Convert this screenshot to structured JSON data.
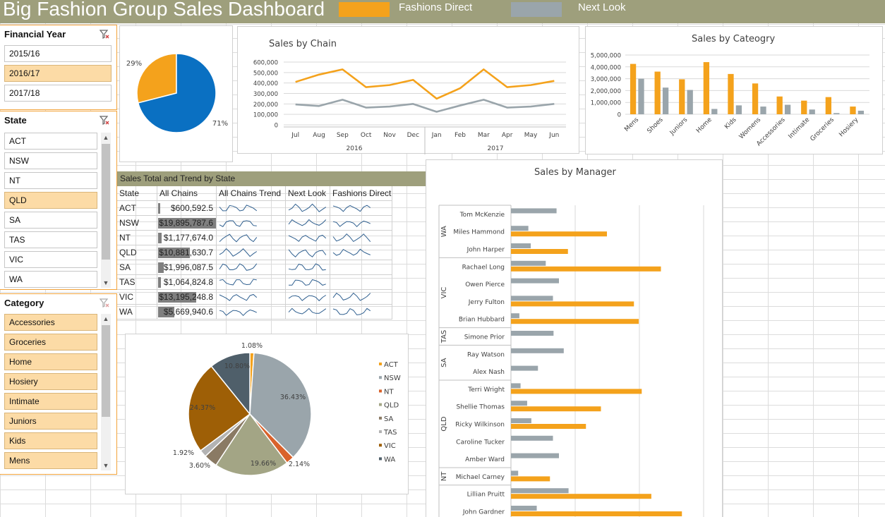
{
  "header": {
    "title": "Big Fashion Group Sales Dashboard",
    "legend": [
      {
        "label": "Fashions Direct",
        "color": "#f4a21c"
      },
      {
        "label": "Next Look",
        "color": "#9aa5ab"
      }
    ],
    "background": "#9e9f7c"
  },
  "slicers": {
    "financial_year": {
      "title": "Financial Year",
      "items": [
        {
          "label": "2015/16",
          "selected": false
        },
        {
          "label": "2016/17",
          "selected": true
        },
        {
          "label": "2017/18",
          "selected": false
        }
      ]
    },
    "state": {
      "title": "State",
      "items": [
        {
          "label": "ACT",
          "selected": false
        },
        {
          "label": "NSW",
          "selected": false
        },
        {
          "label": "NT",
          "selected": false
        },
        {
          "label": "QLD",
          "selected": true
        },
        {
          "label": "SA",
          "selected": false
        },
        {
          "label": "TAS",
          "selected": false
        },
        {
          "label": "VIC",
          "selected": false
        },
        {
          "label": "WA",
          "selected": false
        }
      ]
    },
    "category": {
      "title": "Category",
      "items": [
        {
          "label": "Accessories",
          "selected": true
        },
        {
          "label": "Groceries",
          "selected": true
        },
        {
          "label": "Home",
          "selected": true
        },
        {
          "label": "Hosiery",
          "selected": true
        },
        {
          "label": "Intimate",
          "selected": true
        },
        {
          "label": "Juniors",
          "selected": true
        },
        {
          "label": "Kids",
          "selected": true
        },
        {
          "label": "Mens",
          "selected": true
        }
      ]
    }
  },
  "colors": {
    "orange": "#f4a21c",
    "grey": "#9aa5ab",
    "blue": "#0a70c2",
    "slicer_selected": "#fcdba6",
    "accent_border": "#f2a33a"
  },
  "chart_data": [
    {
      "id": "chain-share-pie",
      "type": "pie",
      "labels": [
        "29%",
        "71%"
      ],
      "values": [
        29,
        71
      ],
      "colors": [
        "#f4a21c",
        "#0a70c2"
      ]
    },
    {
      "id": "sales-by-chain",
      "type": "line",
      "title": "Sales by Chain",
      "categories": [
        "Jul",
        "Aug",
        "Sep",
        "Oct",
        "Nov",
        "Dec",
        "Jan",
        "Feb",
        "Mar",
        "Apr",
        "May",
        "Jun"
      ],
      "groups": [
        "2016",
        "2017"
      ],
      "ylim": [
        0,
        600000
      ],
      "yticks": [
        "600,000",
        "500,000",
        "400,000",
        "300,000",
        "200,000",
        "100,000",
        "0"
      ],
      "series": [
        {
          "values": [
            410000,
            480000,
            530000,
            360000,
            380000,
            430000,
            250000,
            350000,
            530000,
            360000,
            380000,
            420000
          ],
          "color": "#f4a21c"
        },
        {
          "values": [
            195000,
            180000,
            240000,
            165000,
            175000,
            200000,
            125000,
            185000,
            240000,
            165000,
            175000,
            200000
          ],
          "color": "#9aa5ab"
        }
      ]
    },
    {
      "id": "sales-by-category",
      "type": "bar",
      "title": "Sales by Cateogry",
      "categories": [
        "Mens",
        "Shoes",
        "Juniors",
        "Home",
        "Kids",
        "Womens",
        "Accessories",
        "Intimate",
        "Groceries",
        "Hosiery"
      ],
      "ylim": [
        0,
        5000000
      ],
      "yticks": [
        "5,000,000",
        "4,000,000",
        "3,000,000",
        "2,000,000",
        "1,000,000",
        "0"
      ],
      "series": [
        {
          "values": [
            4250000,
            3600000,
            2950000,
            4400000,
            3400000,
            2600000,
            1500000,
            1150000,
            1450000,
            650000
          ],
          "color": "#f4a21c"
        },
        {
          "values": [
            3000000,
            2250000,
            2050000,
            450000,
            750000,
            650000,
            800000,
            400000,
            100000,
            300000
          ],
          "color": "#9aa5ab"
        }
      ]
    },
    {
      "id": "sales-by-manager",
      "type": "bar",
      "title": "Sales by Manager",
      "groups": [
        {
          "state": "WA",
          "managers": [
            "Tom McKenzie",
            "Miles Hammond",
            "John Harper"
          ]
        },
        {
          "state": "VIC",
          "managers": [
            "Rachael Long",
            "Owen Pierce",
            "Jerry Fulton",
            "Brian Hubbard"
          ]
        },
        {
          "state": "TAS",
          "managers": [
            "Simone Prior"
          ]
        },
        {
          "state": "SA",
          "managers": [
            "Ray Watson",
            "Alex Nash"
          ]
        },
        {
          "state": "QLD",
          "managers": [
            "Terri Wright",
            "Shellie Thomas",
            "Ricky Wilkinson",
            "Caroline Tucker",
            "Amber Ward"
          ]
        },
        {
          "state": "NT",
          "managers": [
            "Michael Carney"
          ]
        },
        {
          "state": "",
          "managers": [
            "Lillian Pruitt",
            "John Gardner"
          ]
        }
      ],
      "series": [
        {
          "values": [
            0,
            160000,
            95000,
            250000,
            0,
            205000,
            213000,
            0,
            0,
            0,
            218000,
            150000,
            125000,
            0,
            0,
            65000,
            234000,
            285000
          ],
          "color": "#f4a21c"
        },
        {
          "values": [
            76000,
            29000,
            33000,
            58000,
            80000,
            70000,
            14000,
            71000,
            88000,
            45000,
            16000,
            27000,
            34000,
            70000,
            80000,
            12000,
            96000,
            43000
          ],
          "color": "#9aa5ab"
        }
      ]
    },
    {
      "id": "state-share-pie",
      "type": "pie",
      "categories": [
        "ACT",
        "NSW",
        "NT",
        "QLD",
        "SA",
        "TAS",
        "VIC",
        "WA"
      ],
      "values": [
        1.08,
        36.43,
        2.14,
        19.66,
        3.6,
        1.92,
        24.37,
        10.8
      ],
      "labels": [
        "1.08%",
        "36.43%",
        "2.14%",
        "19.66%",
        "3.60%",
        "1.92%",
        "24.37%",
        "10.80%"
      ],
      "colors": [
        "#f4a21c",
        "#9aa5ab",
        "#d9622b",
        "#a3a585",
        "#8a7a64",
        "#b3b3b3",
        "#9e5f06",
        "#4f5f6a"
      ]
    }
  ],
  "state_table": {
    "header": "Sales Total and Trend by State",
    "columns": [
      "State",
      "All Chains",
      "All Chains Trend",
      "Next Look",
      "Fashions Direct"
    ],
    "max_value": 19895787.6,
    "rows": [
      {
        "state": "ACT",
        "all_chains": "$600,592.5",
        "value": 600592.5,
        "has_fd": true
      },
      {
        "state": "NSW",
        "all_chains": "$19,895,787.6",
        "value": 19895787.6,
        "has_fd": true
      },
      {
        "state": "NT",
        "all_chains": "$1,177,674.0",
        "value": 1177674.0,
        "has_fd": true
      },
      {
        "state": "QLD",
        "all_chains": "$10,881,630.7",
        "value": 10881630.7,
        "has_fd": true
      },
      {
        "state": "SA",
        "all_chains": "$1,996,087.5",
        "value": 1996087.5,
        "has_fd": false
      },
      {
        "state": "TAS",
        "all_chains": "$1,064,824.8",
        "value": 1064824.8,
        "has_fd": false
      },
      {
        "state": "VIC",
        "all_chains": "$13,195,248.8",
        "value": 13195248.8,
        "has_fd": true
      },
      {
        "state": "WA",
        "all_chains": "$5,669,940.6",
        "value": 5669940.6,
        "has_fd": true
      }
    ]
  }
}
